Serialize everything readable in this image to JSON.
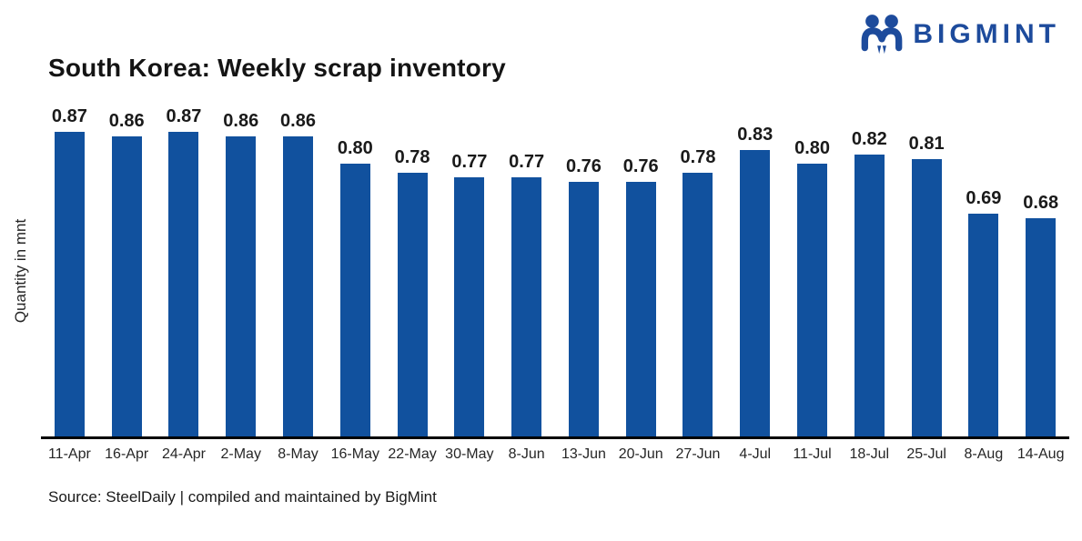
{
  "brand": {
    "wordmark": "BIGMINT",
    "brand_color": "#1d4b9c"
  },
  "chart_data": {
    "type": "bar",
    "title": "South Korea: Weekly scrap inventory",
    "ylabel": "Quantity in mnt",
    "xlabel": "",
    "categories": [
      "11-Apr",
      "16-Apr",
      "24-Apr",
      "2-May",
      "8-May",
      "16-May",
      "22-May",
      "30-May",
      "8-Jun",
      "13-Jun",
      "20-Jun",
      "27-Jun",
      "4-Jul",
      "11-Jul",
      "18-Jul",
      "25-Jul",
      "8-Aug",
      "14-Aug"
    ],
    "values": [
      0.87,
      0.86,
      0.87,
      0.86,
      0.86,
      0.8,
      0.78,
      0.77,
      0.77,
      0.76,
      0.76,
      0.78,
      0.83,
      0.8,
      0.82,
      0.81,
      0.69,
      0.68
    ],
    "value_label_decimals": 2,
    "bar_color": "#11519e",
    "axis_line_color": "#000000",
    "ylim": [
      0.2,
      0.94
    ],
    "grid": false,
    "legend": false,
    "value_labels_shown": true,
    "source": "Source: SteelDaily | compiled and maintained by BigMint"
  }
}
